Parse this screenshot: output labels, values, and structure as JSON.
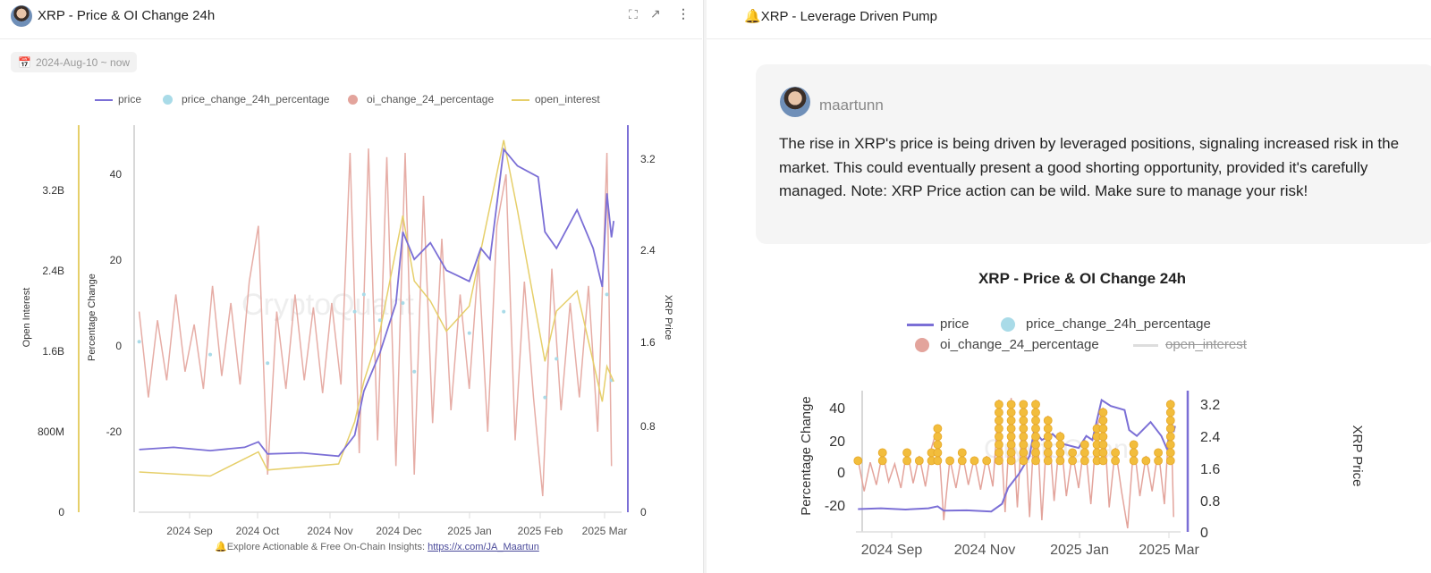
{
  "left_panel": {
    "title": "XRP - Price & OI Change 24h",
    "icons": [
      "avatar",
      "fullscreen-icon",
      "external-link-icon",
      "more-vertical-icon"
    ],
    "date_range": "2024-Aug-10 ~ now",
    "legend": [
      "price",
      "price_change_24h_percentage",
      "oi_change_24_percentage",
      "open_interest"
    ],
    "watermark": "CryptoQuant",
    "footer": {
      "text": "Explore Actionable & Free On-Chain Insights: ",
      "link": "https://x.com/JA_Maartun"
    }
  },
  "right_panel": {
    "title": "XRP - Leverage Driven Pump",
    "author": "maartunn",
    "comment": "The rise in XRP's price is being driven by leveraged positions, signaling increased risk in the market. This could eventually present a good shorting opportunity, provided it's carefully managed. Note: XRP Price action can be wild. Make sure to manage your risk!",
    "chart_title": "XRP - Price & OI Change 24h",
    "legend": [
      "price",
      "price_change_24h_percentage",
      "oi_change_24_percentage",
      "open_interest"
    ],
    "hidden_series": [
      "open_interest"
    ]
  },
  "colors": {
    "price": "#7b6fd6",
    "price_change": "#a9dbe8",
    "oi_change": "#e3a49c",
    "open_interest": "#e6cf6a",
    "highlight": "#f2bd3c"
  },
  "chart_data": [
    {
      "type": "line",
      "title": "XRP - Price & OI Change 24h",
      "y_left_outer": {
        "label": "Open Interest",
        "ticks": [
          "0",
          "800M",
          "1.6B",
          "2.4B",
          "3.2B"
        ],
        "range": [
          0,
          3.85
        ],
        "unit": "B"
      },
      "y_left": {
        "label": "Percentage Change",
        "ticks": [
          "-20",
          "0",
          "20",
          "40"
        ],
        "range": [
          -38,
          51
        ]
      },
      "y_right": {
        "label": "XRP Price",
        "ticks": [
          "0",
          "0.8",
          "1.6",
          "2.4",
          "3.2"
        ],
        "range": [
          0,
          3.5
        ]
      },
      "x_ticks": [
        "2024 Sep",
        "2024 Oct",
        "2024 Nov",
        "2024 Dec",
        "2025 Jan",
        "2025 Feb",
        "2025 Mar"
      ],
      "legend": "top",
      "grid": false
    },
    {
      "type": "line",
      "title": "XRP - Price & OI Change 24h",
      "y_left": {
        "label": "Percentage Change",
        "ticks": [
          "-20",
          "0",
          "20",
          "40"
        ],
        "range": [
          -37,
          46
        ]
      },
      "y_right": {
        "label": "XRP Price",
        "ticks": [
          "0",
          "0.8",
          "1.6",
          "2.4",
          "3.2"
        ],
        "range": [
          0,
          3.5
        ]
      },
      "x_ticks": [
        "2024 Sep",
        "2024 Nov",
        "2025 Jan",
        "2025 Mar"
      ],
      "legend": "top",
      "grid": false
    }
  ],
  "series": {
    "price": [
      [
        "2024-08-10",
        0.57
      ],
      [
        "2024-08-25",
        0.59
      ],
      [
        "2024-09-10",
        0.56
      ],
      [
        "2024-09-25",
        0.59
      ],
      [
        "2024-10-01",
        0.64
      ],
      [
        "2024-10-05",
        0.53
      ],
      [
        "2024-10-20",
        0.54
      ],
      [
        "2024-11-05",
        0.51
      ],
      [
        "2024-11-12",
        0.7
      ],
      [
        "2024-11-16",
        1.1
      ],
      [
        "2024-11-23",
        1.45
      ],
      [
        "2024-11-30",
        1.9
      ],
      [
        "2024-12-03",
        2.55
      ],
      [
        "2024-12-08",
        2.3
      ],
      [
        "2024-12-15",
        2.45
      ],
      [
        "2024-12-22",
        2.2
      ],
      [
        "2025-01-01",
        2.1
      ],
      [
        "2025-01-06",
        2.4
      ],
      [
        "2025-01-10",
        2.3
      ],
      [
        "2025-01-16",
        3.3
      ],
      [
        "2025-01-22",
        3.15
      ],
      [
        "2025-01-31",
        3.05
      ],
      [
        "2025-02-03",
        2.55
      ],
      [
        "2025-02-08",
        2.4
      ],
      [
        "2025-02-17",
        2.75
      ],
      [
        "2025-02-24",
        2.4
      ],
      [
        "2025-02-28",
        2.05
      ],
      [
        "2025-03-02",
        2.9
      ],
      [
        "2025-03-04",
        2.5
      ],
      [
        "2025-03-05",
        2.65
      ]
    ],
    "open_interest_B": [
      [
        "2024-08-10",
        0.4
      ],
      [
        "2024-09-10",
        0.36
      ],
      [
        "2024-10-01",
        0.6
      ],
      [
        "2024-10-05",
        0.42
      ],
      [
        "2024-11-05",
        0.48
      ],
      [
        "2024-11-12",
        0.9
      ],
      [
        "2024-11-16",
        1.3
      ],
      [
        "2024-11-23",
        1.8
      ],
      [
        "2024-12-03",
        2.95
      ],
      [
        "2024-12-08",
        2.3
      ],
      [
        "2024-12-15",
        2.1
      ],
      [
        "2024-12-22",
        1.8
      ],
      [
        "2025-01-01",
        2.05
      ],
      [
        "2025-01-06",
        2.6
      ],
      [
        "2025-01-16",
        3.7
      ],
      [
        "2025-01-22",
        3.0
      ],
      [
        "2025-02-03",
        1.5
      ],
      [
        "2025-02-08",
        2.0
      ],
      [
        "2025-02-17",
        2.2
      ],
      [
        "2025-02-28",
        1.1
      ],
      [
        "2025-03-02",
        1.45
      ],
      [
        "2025-03-05",
        1.3
      ]
    ],
    "oi_change_24_percentage": [
      [
        "2024-08-10",
        8
      ],
      [
        "2024-08-14",
        -12
      ],
      [
        "2024-08-18",
        6
      ],
      [
        "2024-08-22",
        -8
      ],
      [
        "2024-08-26",
        12
      ],
      [
        "2024-08-30",
        -6
      ],
      [
        "2024-09-03",
        5
      ],
      [
        "2024-09-07",
        -10
      ],
      [
        "2024-09-11",
        14
      ],
      [
        "2024-09-15",
        -7
      ],
      [
        "2024-09-19",
        10
      ],
      [
        "2024-09-23",
        -9
      ],
      [
        "2024-09-27",
        15
      ],
      [
        "2024-10-01",
        28
      ],
      [
        "2024-10-05",
        -30
      ],
      [
        "2024-10-09",
        8
      ],
      [
        "2024-10-13",
        -10
      ],
      [
        "2024-10-17",
        12
      ],
      [
        "2024-10-21",
        -8
      ],
      [
        "2024-10-25",
        9
      ],
      [
        "2024-10-29",
        -11
      ],
      [
        "2024-11-02",
        10
      ],
      [
        "2024-11-06",
        -9
      ],
      [
        "2024-11-10",
        45
      ],
      [
        "2024-11-14",
        -25
      ],
      [
        "2024-11-18",
        46
      ],
      [
        "2024-11-22",
        -22
      ],
      [
        "2024-11-26",
        44
      ],
      [
        "2024-11-30",
        -28
      ],
      [
        "2024-12-04",
        45
      ],
      [
        "2024-12-08",
        -30
      ],
      [
        "2024-12-12",
        35
      ],
      [
        "2024-12-16",
        -18
      ],
      [
        "2024-12-20",
        25
      ],
      [
        "2024-12-24",
        -15
      ],
      [
        "2024-12-28",
        12
      ],
      [
        "2025-01-01",
        -10
      ],
      [
        "2025-01-05",
        20
      ],
      [
        "2025-01-09",
        -20
      ],
      [
        "2025-01-13",
        28
      ],
      [
        "2025-01-17",
        40
      ],
      [
        "2025-01-21",
        -22
      ],
      [
        "2025-01-25",
        15
      ],
      [
        "2025-01-29",
        -12
      ],
      [
        "2025-02-02",
        -35
      ],
      [
        "2025-02-06",
        18
      ],
      [
        "2025-02-10",
        -15
      ],
      [
        "2025-02-14",
        10
      ],
      [
        "2025-02-18",
        -12
      ],
      [
        "2025-02-22",
        14
      ],
      [
        "2025-02-26",
        -20
      ],
      [
        "2025-03-02",
        45
      ],
      [
        "2025-03-04",
        -28
      ]
    ],
    "price_change_24h_percentage": [
      [
        "2024-08-10",
        1
      ],
      [
        "2024-09-10",
        -2
      ],
      [
        "2024-10-05",
        -4
      ],
      [
        "2024-11-12",
        8
      ],
      [
        "2024-11-16",
        12
      ],
      [
        "2024-11-23",
        6
      ],
      [
        "2024-12-03",
        10
      ],
      [
        "2024-12-08",
        -6
      ],
      [
        "2025-01-01",
        3
      ],
      [
        "2025-01-16",
        8
      ],
      [
        "2025-02-03",
        -12
      ],
      [
        "2025-02-08",
        -3
      ],
      [
        "2025-03-02",
        12
      ],
      [
        "2025-03-04",
        -8
      ]
    ]
  }
}
